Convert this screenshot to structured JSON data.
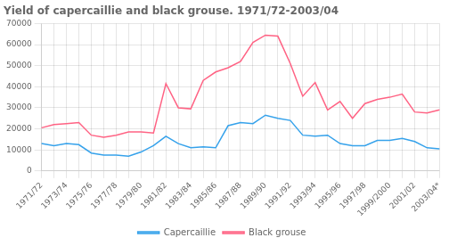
{
  "chart_data": {
    "type": "line",
    "title": "Yield of capercaillie and black grouse. 1971/72-2003/04",
    "categories": [
      "1971/72",
      null,
      "1973/74",
      null,
      "1975/76",
      null,
      "1977/78",
      null,
      "1979/80",
      null,
      "1981/82",
      null,
      "1983/84",
      null,
      "1985/86",
      null,
      "1987/88",
      null,
      "1989/90",
      null,
      "1991/92",
      null,
      "1993/94",
      null,
      "1995/96",
      null,
      "1997/98",
      null,
      "1999/2000",
      null,
      "2001/02",
      null,
      "2003/04*"
    ],
    "series": [
      {
        "name": "Capercaillie",
        "values": [
          13000,
          12000,
          13000,
          12500,
          8500,
          7500,
          7500,
          7000,
          9000,
          12000,
          16500,
          13000,
          11000,
          11500,
          11000,
          21500,
          23000,
          22500,
          26500,
          25000,
          24000,
          17000,
          16500,
          17000,
          13000,
          12000,
          12000,
          14500,
          14500,
          15500,
          14000,
          11000,
          10500
        ]
      },
      {
        "name": "Black grouse",
        "values": [
          20500,
          22000,
          22500,
          23000,
          17000,
          16000,
          17000,
          18500,
          18500,
          18000,
          41500,
          30000,
          29500,
          43000,
          47000,
          49000,
          52000,
          61000,
          64500,
          64000,
          51000,
          35500,
          42000,
          29000,
          33000,
          25000,
          32000,
          34000,
          35000,
          36500,
          28000,
          27500,
          29000
        ]
      }
    ],
    "ylim": [
      0,
      70000
    ],
    "yticks": [
      0,
      10000,
      20000,
      30000,
      40000,
      50000,
      60000,
      70000
    ],
    "grid": true,
    "legend": "bottom"
  }
}
